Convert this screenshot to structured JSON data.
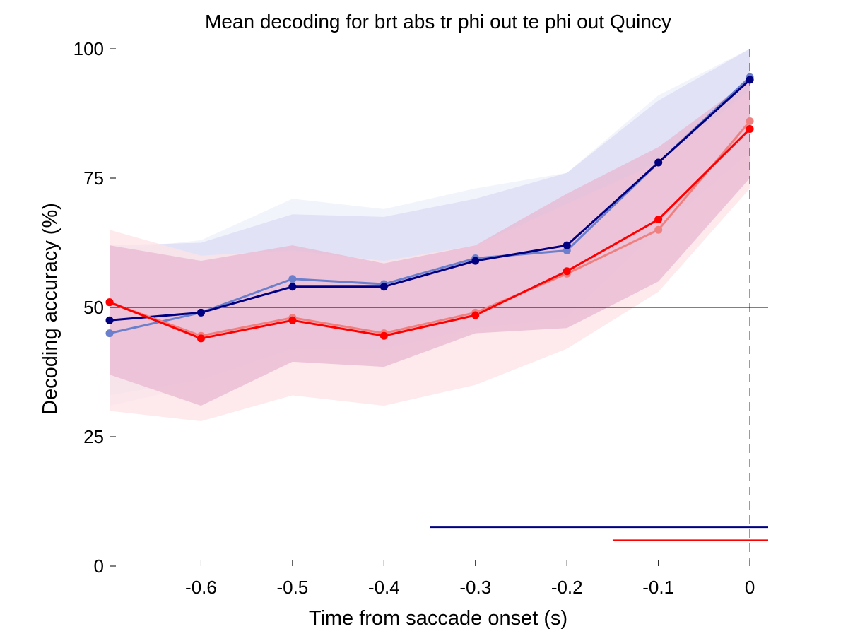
{
  "chart_data": {
    "type": "line",
    "title": "Mean decoding for brt abs tr phi out te phi out  Quincy",
    "xlabel": "Time from saccade onset (s)",
    "ylabel": "Decoding accuracy (%)",
    "xlim": [
      -0.7,
      0.02
    ],
    "ylim": [
      0,
      100
    ],
    "xticks": [
      -0.6,
      -0.5,
      -0.4,
      -0.3,
      -0.2,
      -0.1,
      0
    ],
    "xtick_labels": [
      "-0.6",
      "-0.5",
      "-0.4",
      "-0.3",
      "-0.2",
      "-0.1",
      "0"
    ],
    "yticks": [
      0,
      25,
      50,
      75,
      100
    ],
    "ytick_labels": [
      "0",
      "25",
      "50",
      "75",
      "100"
    ],
    "grid": false,
    "x": [
      -0.7,
      -0.6,
      -0.5,
      -0.4,
      -0.3,
      -0.2,
      -0.1,
      0
    ],
    "chance_level": 50,
    "event_line_x": 0,
    "series": [
      {
        "color": "#6b7fcc",
        "values": [
          45,
          49,
          55.5,
          54.5,
          59.5,
          61,
          78,
          94.5
        ],
        "band_lower": [
          31,
          35,
          41,
          41,
          46,
          47,
          64,
          78
        ],
        "band_upper": [
          61,
          63,
          71,
          69,
          73,
          76,
          91,
          100
        ],
        "band_color": "#eef0fa"
      },
      {
        "color": "#000080",
        "values": [
          47.5,
          49,
          54,
          54,
          59,
          62,
          78,
          94
        ],
        "band_lower": [
          33,
          36,
          42,
          42,
          46,
          48,
          65,
          80
        ],
        "band_upper": [
          62,
          62.5,
          68,
          67.5,
          71,
          76,
          90,
          100
        ],
        "band_color": "#dcdcf5"
      },
      {
        "color": "#f08080",
        "values": [
          51,
          44.5,
          48,
          45,
          49,
          56.5,
          65,
          86
        ],
        "band_lower": [
          30,
          28,
          33,
          31,
          35,
          42,
          53,
          73
        ],
        "band_upper": [
          65,
          60,
          61,
          59,
          62,
          70,
          78,
          92
        ],
        "band_color": "#fde3e6"
      },
      {
        "color": "#ff0000",
        "values": [
          51,
          44,
          47.5,
          44.5,
          48.5,
          57,
          67,
          84.5
        ],
        "band_lower": [
          37,
          31,
          39.5,
          38.5,
          45,
          46,
          55,
          75
        ],
        "band_upper": [
          62,
          59,
          62,
          58.5,
          62,
          72,
          81,
          94
        ],
        "band_color": "#e8b8d2"
      }
    ],
    "significance_bars": [
      {
        "color": "#000080",
        "x_start": -0.35,
        "x_end": 0.02,
        "y": 7.5
      },
      {
        "color": "#ff0000",
        "x_start": -0.15,
        "x_end": 0.02,
        "y": 5
      }
    ]
  }
}
